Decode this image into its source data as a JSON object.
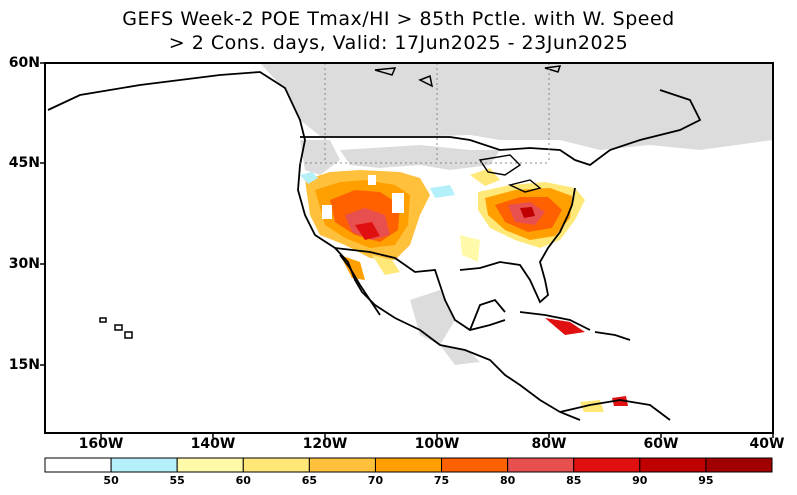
{
  "title": {
    "line1": "GEFS Week-2 POE Tmax/HI > 85th Pctle. with W. Speed",
    "line2": "> 2 Cons. days, Valid: 17Jun2025 - 23Jun2025"
  },
  "axes": {
    "lat_labels": [
      "60N",
      "45N",
      "30N",
      "15N"
    ],
    "lon_labels": [
      "160W",
      "140W",
      "120W",
      "100W",
      "80W",
      "60W",
      "40W"
    ]
  },
  "colorbar": {
    "labels": [
      "50",
      "55",
      "60",
      "65",
      "70",
      "75",
      "80",
      "85",
      "90",
      "95"
    ],
    "colors": [
      "#ffffff",
      "#b4f0fa",
      "#fffaaa",
      "#ffe878",
      "#ffc03c",
      "#ffa000",
      "#ff6000",
      "#e85050",
      "#e01010",
      "#c00000",
      "#a00000"
    ]
  },
  "colors": {
    "land_mask": "#dcdcdc",
    "coast": "#000000"
  }
}
